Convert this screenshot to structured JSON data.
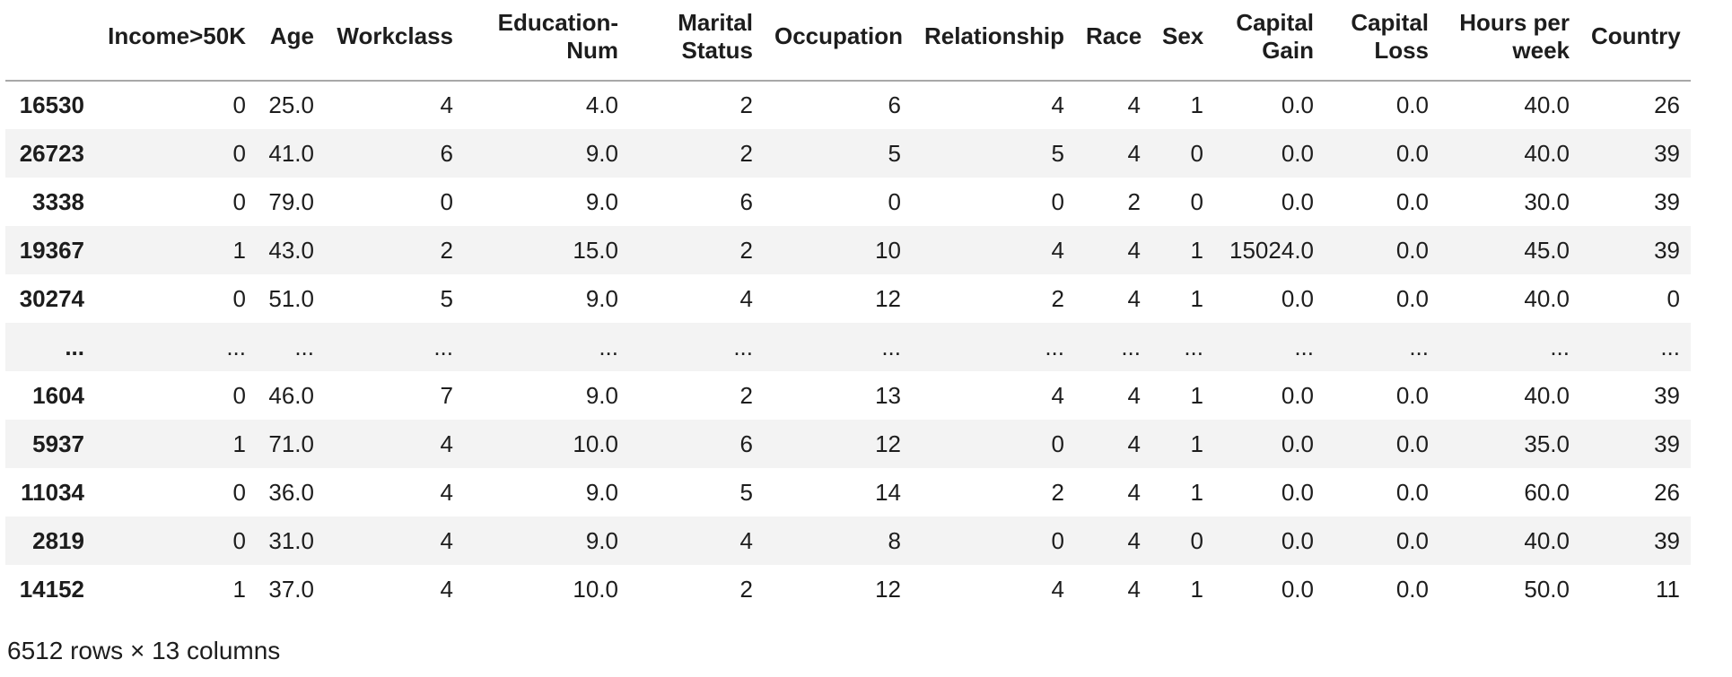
{
  "table": {
    "index_header": "",
    "columns": [
      "Income>50K",
      "Age",
      "Workclass",
      "Education-Num",
      "Marital Status",
      "Occupation",
      "Relationship",
      "Race",
      "Sex",
      "Capital Gain",
      "Capital Loss",
      "Hours per week",
      "Country"
    ],
    "rows": [
      {
        "index": "16530",
        "values": [
          "0",
          "25.0",
          "4",
          "4.0",
          "2",
          "6",
          "4",
          "4",
          "1",
          "0.0",
          "0.0",
          "40.0",
          "26"
        ]
      },
      {
        "index": "26723",
        "values": [
          "0",
          "41.0",
          "6",
          "9.0",
          "2",
          "5",
          "5",
          "4",
          "0",
          "0.0",
          "0.0",
          "40.0",
          "39"
        ]
      },
      {
        "index": "3338",
        "values": [
          "0",
          "79.0",
          "0",
          "9.0",
          "6",
          "0",
          "0",
          "2",
          "0",
          "0.0",
          "0.0",
          "30.0",
          "39"
        ]
      },
      {
        "index": "19367",
        "values": [
          "1",
          "43.0",
          "2",
          "15.0",
          "2",
          "10",
          "4",
          "4",
          "1",
          "15024.0",
          "0.0",
          "45.0",
          "39"
        ]
      },
      {
        "index": "30274",
        "values": [
          "0",
          "51.0",
          "5",
          "9.0",
          "4",
          "12",
          "2",
          "4",
          "1",
          "0.0",
          "0.0",
          "40.0",
          "0"
        ]
      },
      {
        "index": "...",
        "values": [
          "...",
          "...",
          "...",
          "...",
          "...",
          "...",
          "...",
          "...",
          "...",
          "...",
          "...",
          "...",
          "..."
        ]
      },
      {
        "index": "1604",
        "values": [
          "0",
          "46.0",
          "7",
          "9.0",
          "2",
          "13",
          "4",
          "4",
          "1",
          "0.0",
          "0.0",
          "40.0",
          "39"
        ]
      },
      {
        "index": "5937",
        "values": [
          "1",
          "71.0",
          "4",
          "10.0",
          "6",
          "12",
          "0",
          "4",
          "1",
          "0.0",
          "0.0",
          "35.0",
          "39"
        ]
      },
      {
        "index": "11034",
        "values": [
          "0",
          "36.0",
          "4",
          "9.0",
          "5",
          "14",
          "2",
          "4",
          "1",
          "0.0",
          "0.0",
          "60.0",
          "26"
        ]
      },
      {
        "index": "2819",
        "values": [
          "0",
          "31.0",
          "4",
          "9.0",
          "4",
          "8",
          "0",
          "4",
          "0",
          "0.0",
          "0.0",
          "40.0",
          "39"
        ]
      },
      {
        "index": "14152",
        "values": [
          "1",
          "37.0",
          "4",
          "10.0",
          "2",
          "12",
          "4",
          "4",
          "1",
          "0.0",
          "0.0",
          "50.0",
          "11"
        ]
      }
    ],
    "footer": "6512 rows × 13 columns"
  },
  "colors": {
    "background": "#ffffff",
    "text": "#1d1d1d",
    "row_stripe": "#f3f3f3",
    "header_border": "#a8a8a8"
  }
}
